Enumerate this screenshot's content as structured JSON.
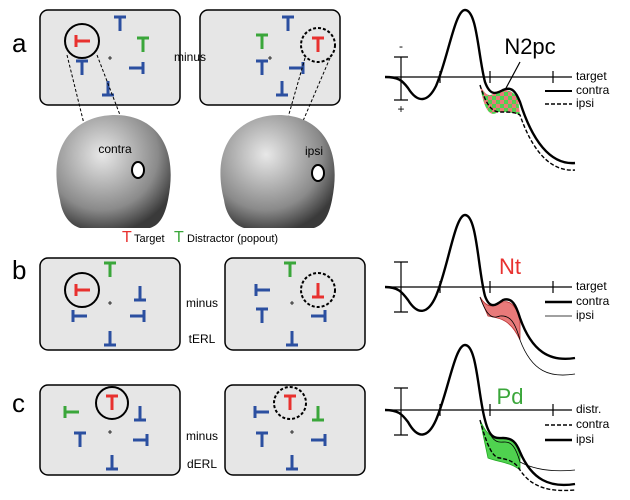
{
  "panels": [
    {
      "label": "a",
      "minus": "minus",
      "heads": [
        "contra",
        "ipsi"
      ],
      "legend": [
        {
          "symbol": "T",
          "text": "Target"
        },
        {
          "symbol": "T",
          "text": "Distractor (popout)"
        }
      ],
      "wave": {
        "component": "N2pc",
        "scale": [
          "-",
          "+"
        ],
        "legend": [
          "target",
          "contra",
          "ipsi"
        ]
      }
    },
    {
      "label": "b",
      "minus": "minus",
      "caption": "tERL",
      "wave": {
        "component": "Nt",
        "legend": [
          "target",
          "contra",
          "ipsi"
        ]
      }
    },
    {
      "label": "c",
      "minus": "minus",
      "caption": "dERL",
      "wave": {
        "component": "Pd",
        "legend": [
          "distr.",
          "contra",
          "ipsi"
        ]
      }
    }
  ]
}
